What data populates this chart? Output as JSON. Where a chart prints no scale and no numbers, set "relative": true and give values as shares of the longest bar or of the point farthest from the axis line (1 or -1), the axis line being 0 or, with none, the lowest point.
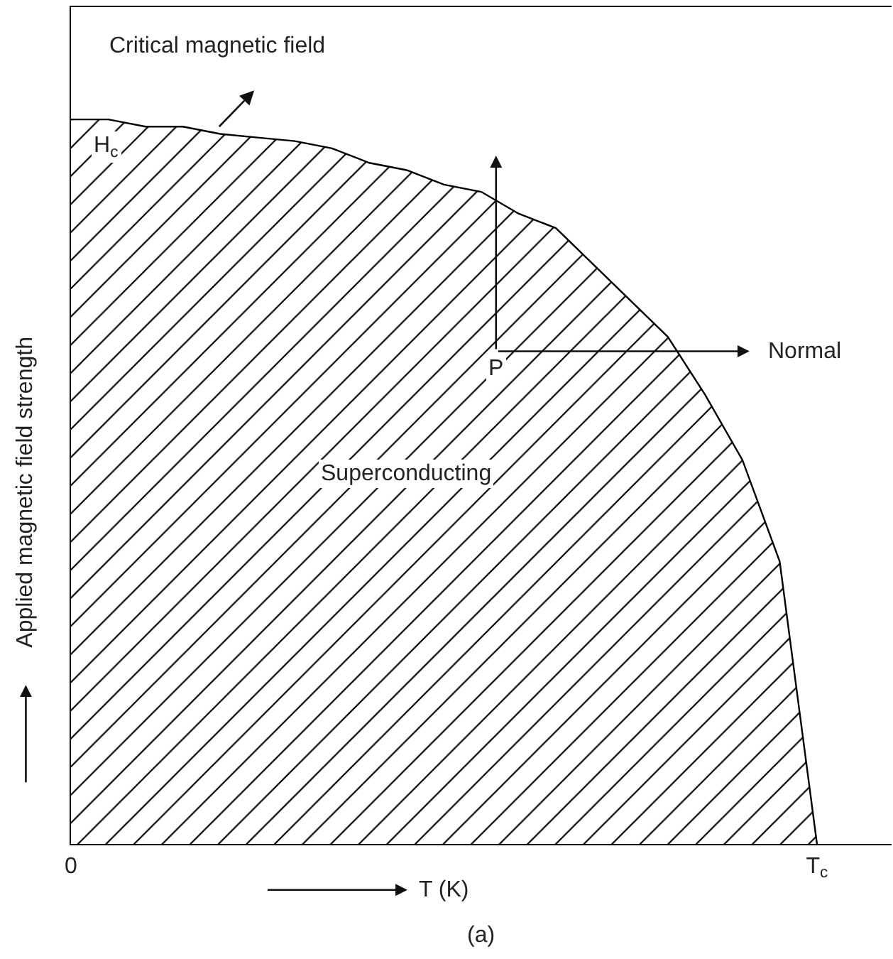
{
  "chart_data": {
    "type": "area",
    "relative": true,
    "xlabel": "T (K)",
    "ylabel": "Applied magnetic field strength",
    "categories": [
      "0",
      null,
      null,
      null,
      null,
      null,
      null,
      null,
      null,
      null,
      null,
      null,
      null,
      null,
      null,
      null,
      null,
      null,
      null,
      null,
      "T$_{c}$",
      null,
      null
    ],
    "values": [
      1,
      1,
      0.99,
      0.99,
      0.98,
      0.975,
      0.97,
      0.96,
      0.94,
      0.93,
      0.91,
      0.9,
      0.87,
      0.85,
      0.8,
      0.75,
      0.7,
      0.62,
      0.53,
      0.39,
      0,
      null,
      null
    ],
    "color": "#000000",
    "grid": false,
    "legend": false,
    "annotations": [
      "Critical magnetic field",
      {
        "text": "H$_{c}$",
        "x": "0",
        "y": 1
      },
      "P",
      "Normal",
      "Superconducting",
      "(a)"
    ]
  }
}
